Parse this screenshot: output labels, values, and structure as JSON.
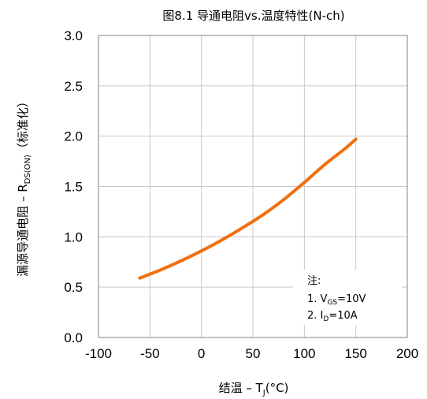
{
  "chart_data": {
    "type": "line",
    "title": "图8.1 导通电阻vs.温度特性(N-ch)",
    "xlabel": {
      "prefix": "结温 – T",
      "sub": "J",
      "suffix": "(°C)"
    },
    "ylabel": {
      "prefix": "漏源导通电阻 – R",
      "sub": "DS(ON)",
      "suffix": "（标准化）"
    },
    "xlim": [
      -100,
      200
    ],
    "ylim": [
      0,
      3.0
    ],
    "xticks": [
      -100,
      -50,
      0,
      50,
      100,
      150,
      200
    ],
    "yticks": [
      "0.0",
      "0.5",
      "1.0",
      "1.5",
      "2.0",
      "2.5",
      "3.0"
    ],
    "grid": true,
    "series": [
      {
        "color": "#F07010",
        "x": [
          -60,
          -40,
          -20,
          0,
          20,
          40,
          60,
          80,
          100,
          120,
          140,
          150
        ],
        "y": [
          0.59,
          0.67,
          0.76,
          0.86,
          0.97,
          1.09,
          1.22,
          1.37,
          1.54,
          1.72,
          1.88,
          1.97
        ]
      }
    ],
    "annotation": {
      "heading": "注:",
      "lines": [
        {
          "prefix": "1. V",
          "sub": "GS",
          "suffix": "=10V"
        },
        {
          "prefix": "2. I",
          "sub": "D",
          "suffix": "=10A"
        }
      ]
    }
  }
}
